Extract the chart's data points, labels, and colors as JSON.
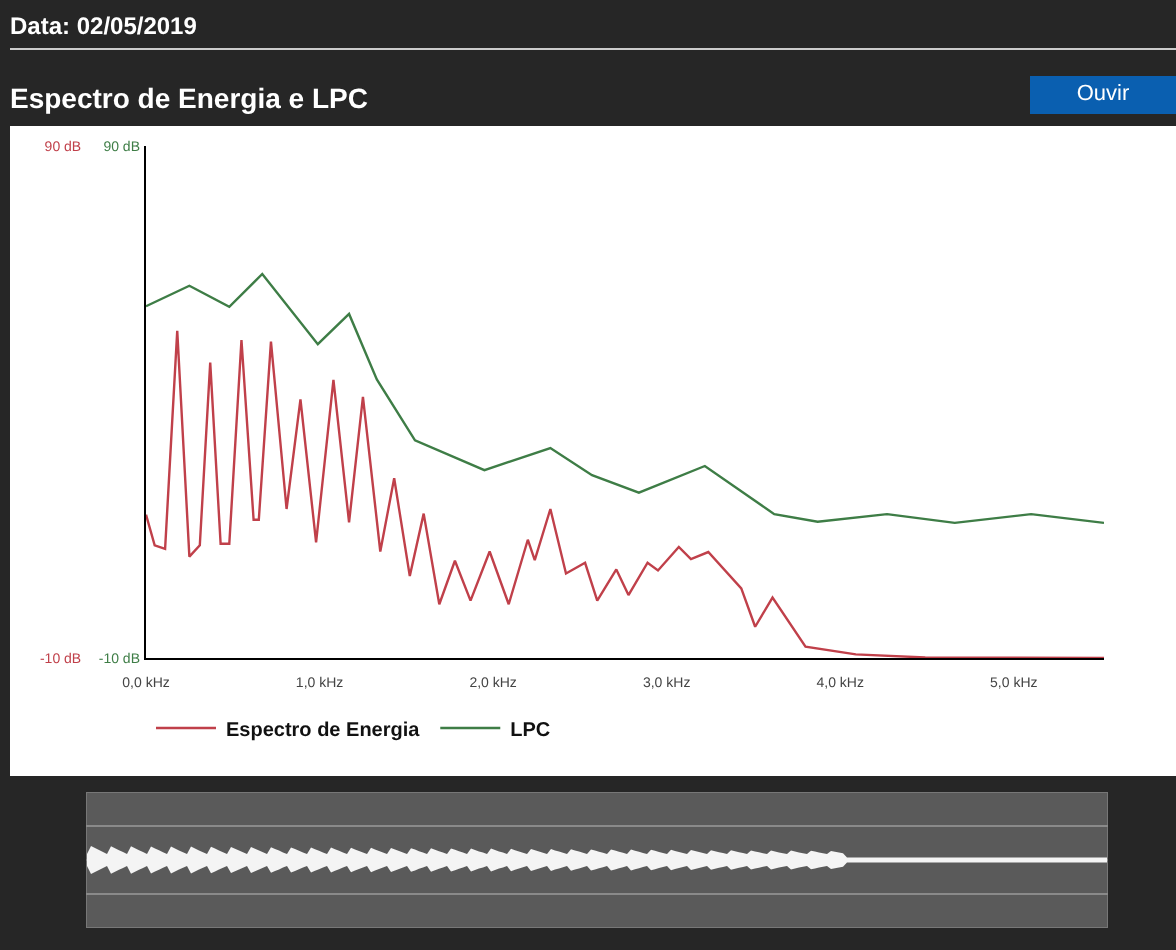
{
  "chart_data": {
    "type": "line",
    "title": "Espectro de Energia e LPC",
    "annotations": [
      "Data: 02/05/2019",
      "Ouvir"
    ],
    "xlim": [
      0,
      5.52
    ],
    "xticks": [
      {
        "value": 0,
        "label": "0,0 kHz"
      },
      {
        "value": 1,
        "label": "1,0 kHz"
      },
      {
        "value": 2,
        "label": "2,0 kHz"
      },
      {
        "value": 3,
        "label": "3,0 kHz"
      },
      {
        "value": 4,
        "label": "4,0 kHz"
      },
      {
        "value": 5,
        "label": "5,0 kHz"
      }
    ],
    "ylim": [
      -10,
      90
    ],
    "yticks": [
      {
        "value": -10,
        "label": "-10 dB"
      },
      {
        "value": 90,
        "label": "90 dB"
      }
    ],
    "y2lim": [
      -10,
      90
    ],
    "y2ticks": [
      {
        "value": -10,
        "label": "-10 dB"
      },
      {
        "value": 90,
        "label": "90 dB"
      }
    ],
    "grid": false,
    "legend": "bottom left",
    "marker": "none",
    "line_style": "solid",
    "series": [
      {
        "name": "Espectro de Energia",
        "color": "#c0404a",
        "x": [
          0,
          0.05,
          0.11,
          0.18,
          0.25,
          0.31,
          0.37,
          0.43,
          0.48,
          0.55,
          0.62,
          0.65,
          0.72,
          0.81,
          0.89,
          0.98,
          1.08,
          1.17,
          1.25,
          1.35,
          1.43,
          1.52,
          1.6,
          1.69,
          1.78,
          1.87,
          1.98,
          2.09,
          2.2,
          2.24,
          2.33,
          2.42,
          2.53,
          2.6,
          2.71,
          2.78,
          2.89,
          2.95,
          3.07,
          3.14,
          3.24,
          3.43,
          3.51,
          3.61,
          3.8,
          4.09,
          4.49,
          5.52
        ],
        "values": [
          18,
          12,
          11.3,
          53.9,
          9.8,
          12,
          47.7,
          12.3,
          12.3,
          52.1,
          17,
          17,
          51.8,
          19.1,
          40.5,
          12.6,
          44.3,
          16.5,
          41,
          10.8,
          25.1,
          6,
          18.2,
          0.5,
          9,
          1.2,
          10.8,
          0.5,
          13.1,
          9.1,
          19.1,
          6.5,
          8.6,
          1.2,
          7.3,
          2.3,
          8.6,
          7.1,
          11.7,
          9.3,
          10.7,
          3.6,
          -3.9,
          1.8,
          -7.8,
          -9.3,
          -9.9,
          -10
        ]
      },
      {
        "name": "LPC",
        "color": "#3e7d46",
        "axis": "y2",
        "x": [
          0,
          0.25,
          0.48,
          0.67,
          0.99,
          1.17,
          1.33,
          1.55,
          1.95,
          2.33,
          2.57,
          2.84,
          3.22,
          3.62,
          3.87,
          4.27,
          4.66,
          5.1,
          5.52
        ],
        "values": [
          58.7,
          62.7,
          58.6,
          65,
          51.3,
          57.2,
          44.4,
          32.5,
          26.7,
          31,
          25.7,
          22.3,
          27.5,
          18.1,
          16.6,
          18.1,
          16.4,
          18.1,
          16.4
        ]
      }
    ]
  }
}
